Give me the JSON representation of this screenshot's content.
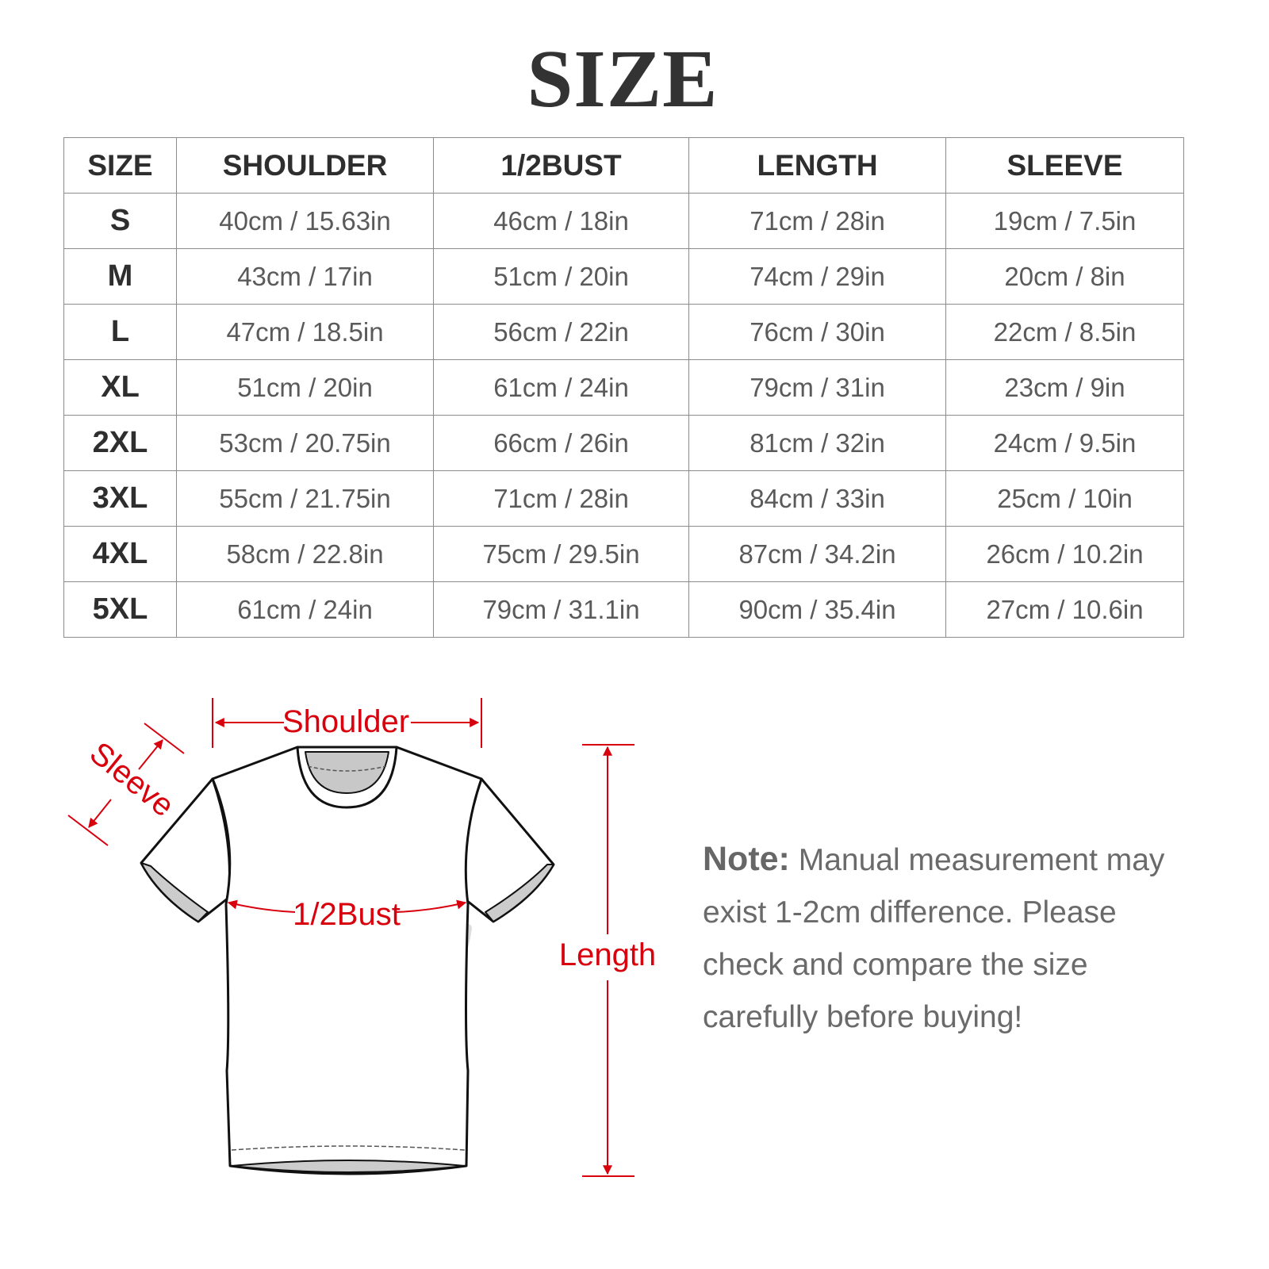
{
  "title": "SIZE",
  "table": {
    "headers": [
      "SIZE",
      "SHOULDER",
      "1/2BUST",
      "LENGTH",
      "SLEEVE"
    ],
    "rows": [
      [
        "S",
        "40cm / 15.63in",
        "46cm / 18in",
        "71cm / 28in",
        "19cm / 7.5in"
      ],
      [
        "M",
        "43cm / 17in",
        "51cm / 20in",
        "74cm / 29in",
        "20cm / 8in"
      ],
      [
        "L",
        "47cm / 18.5in",
        "56cm / 22in",
        "76cm / 30in",
        "22cm / 8.5in"
      ],
      [
        "XL",
        "51cm / 20in",
        "61cm / 24in",
        "79cm / 31in",
        "23cm / 9in"
      ],
      [
        "2XL",
        "53cm / 20.75in",
        "66cm / 26in",
        "81cm / 32in",
        "24cm / 9.5in"
      ],
      [
        "3XL",
        "55cm / 21.75in",
        "71cm / 28in",
        "84cm / 33in",
        "25cm / 10in"
      ],
      [
        "4XL",
        "58cm / 22.8in",
        "75cm / 29.5in",
        "87cm / 34.2in",
        "26cm / 10.2in"
      ],
      [
        "5XL",
        "61cm / 24in",
        "79cm / 31.1in",
        "90cm / 35.4in",
        "27cm / 10.6in"
      ]
    ]
  },
  "diagram": {
    "labels": {
      "shoulder": "Shoulder",
      "sleeve": "Sleeve",
      "bust": "1/2Bust",
      "length": "Length"
    },
    "accent_color": "#d9000d"
  },
  "note": {
    "label": "Note:",
    "text": "Manual measurement may exist 1-2cm difference. Please check and compare the size carefully before buying!"
  }
}
